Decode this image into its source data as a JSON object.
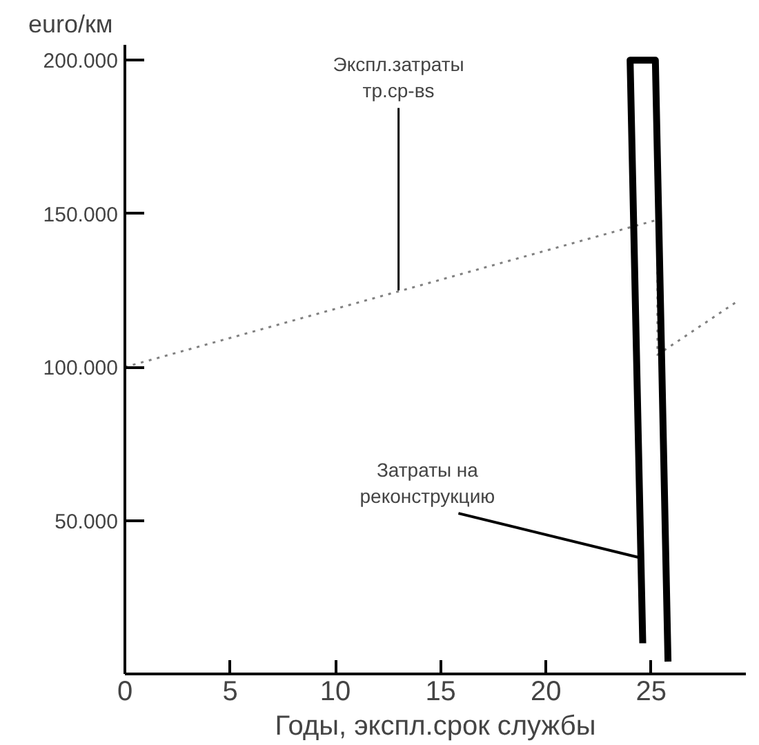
{
  "chart_data": {
    "type": "line",
    "xlabel": "Годы, экспл.срок службы",
    "ylabel": "euro/км",
    "xlim": [
      0,
      29.5
    ],
    "ylim": [
      0,
      205000
    ],
    "xticks": [
      0,
      5,
      10,
      15,
      20,
      25
    ],
    "yticks": [
      {
        "value": 50000,
        "label": "50.000"
      },
      {
        "value": 100000,
        "label": "100.000"
      },
      {
        "value": 150000,
        "label": "150.000"
      },
      {
        "value": 200000,
        "label": "200.000"
      }
    ],
    "series": [
      {
        "color": "#808080",
        "line_style": "dotted",
        "x": [
          0,
          25.3,
          25.3,
          29
        ],
        "values": [
          100000,
          148000,
          104000,
          121000
        ]
      },
      {
        "color": "#000000",
        "line_style": "solid",
        "x": [
          24.6,
          24.0,
          25.2,
          25.8
        ],
        "values": [
          10000,
          200000,
          200000,
          4000
        ]
      }
    ],
    "annotations": [
      {
        "text": "Экспл.затраты\nтр.ср-вs",
        "x": 13,
        "y": 125000
      },
      {
        "text": "Затраты на\nреконструкцию",
        "x": 24.4,
        "y": 38000
      }
    ],
    "grid": false
  }
}
